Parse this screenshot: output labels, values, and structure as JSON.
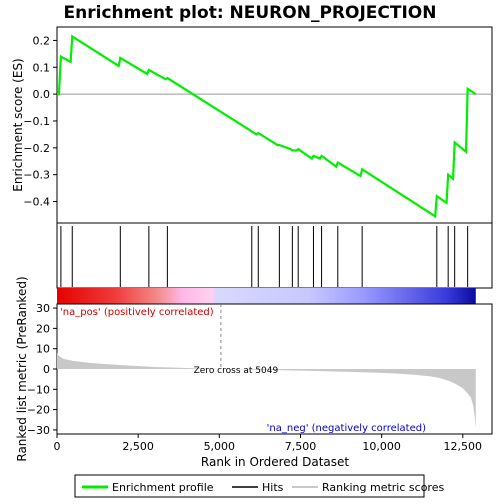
{
  "title": "Enrichment plot: NEURON_PROJECTION",
  "colors": {
    "profile": "#00ee00",
    "hits": "#000000",
    "metric_fill": "#c8c8c8",
    "zero_line": "#999999",
    "pos_label": "#cc0000",
    "neg_label": "#0000cc",
    "frame": "#000000"
  },
  "chart_data": [
    {
      "type": "line",
      "panel": "enrichment-profile",
      "ylabel": "Enrichment score (ES)",
      "xlim": [
        0,
        13400
      ],
      "ylim": [
        -0.48,
        0.25
      ],
      "yticks": [
        0.2,
        0.1,
        0.0,
        -0.1,
        -0.2,
        -0.3,
        -0.4
      ],
      "ytick_labels": [
        "0.2",
        "0.1",
        "0.0",
        "−0.1",
        "−0.2",
        "−0.3",
        "−0.4"
      ],
      "series": [
        {
          "name": "Enrichment profile",
          "x": [
            0,
            60,
            120,
            420,
            470,
            1900,
            1950,
            2780,
            2830,
            3350,
            3400,
            5950,
            6000,
            6150,
            6200,
            6800,
            6850,
            7200,
            7250,
            7380,
            7430,
            7850,
            7900,
            8100,
            8150,
            8600,
            8650,
            9350,
            9400,
            11650,
            11700,
            12000,
            12050,
            12200,
            12250,
            12600,
            12650,
            12900
          ],
          "y": [
            0.0,
            0.0,
            0.14,
            0.12,
            0.215,
            0.105,
            0.135,
            0.075,
            0.09,
            0.055,
            0.06,
            -0.135,
            -0.14,
            -0.15,
            -0.145,
            -0.19,
            -0.19,
            -0.205,
            -0.21,
            -0.21,
            -0.205,
            -0.24,
            -0.23,
            -0.24,
            -0.23,
            -0.27,
            -0.255,
            -0.305,
            -0.28,
            -0.455,
            -0.38,
            -0.405,
            -0.3,
            -0.315,
            -0.18,
            -0.215,
            0.02,
            0.0
          ]
        }
      ]
    },
    {
      "type": "scatter",
      "panel": "hits",
      "name": "Hits",
      "x": [
        120,
        470,
        1950,
        2830,
        3400,
        6000,
        6200,
        6850,
        7250,
        7430,
        7900,
        8150,
        8650,
        9400,
        11700,
        12050,
        12250,
        12650
      ]
    },
    {
      "type": "area",
      "panel": "ranked-metric",
      "xlabel": "Rank in Ordered Dataset",
      "ylabel": "Ranked list metric (PreRanked)",
      "xlim": [
        0,
        13400
      ],
      "ylim": [
        -32,
        32
      ],
      "xticks": [
        0,
        2500,
        5000,
        7500,
        10000,
        12500
      ],
      "xtick_labels": [
        "0",
        "2,500",
        "5,000",
        "7,500",
        "10,000",
        "12,500"
      ],
      "yticks": [
        30,
        20,
        10,
        0,
        -10,
        -20,
        -30
      ],
      "ytick_labels": [
        "30",
        "20",
        "10",
        "0",
        "−10",
        "−20",
        "−30"
      ],
      "series": [
        {
          "name": "Ranking metric scores",
          "x": [
            0,
            50,
            200,
            500,
            1000,
            1500,
            2000,
            2500,
            3000,
            4000,
            5049,
            6000,
            7000,
            8000,
            9000,
            10000,
            10500,
            11000,
            11500,
            11800,
            12100,
            12300,
            12500,
            12650,
            12750,
            12820,
            12870,
            12900
          ],
          "y": [
            8,
            6.5,
            5,
            4,
            3,
            2.4,
            1.9,
            1.4,
            1.0,
            0.5,
            0,
            -0.3,
            -0.6,
            -1.0,
            -1.4,
            -1.9,
            -2.3,
            -2.8,
            -3.6,
            -4.5,
            -6,
            -7.5,
            -9.5,
            -12,
            -14,
            -18,
            -24,
            -29
          ]
        }
      ],
      "annotations": {
        "zero_cross": "Zero cross at 5049",
        "zero_cross_x": 5049,
        "pos_label": "'na_pos' (positively correlated)",
        "neg_label": "'na_neg' (negatively correlated)"
      }
    }
  ],
  "legend": {
    "placement": "bottom",
    "items": [
      {
        "label": "Enrichment profile",
        "color": "#00ee00"
      },
      {
        "label": "Hits",
        "color": "#000000"
      },
      {
        "label": "Ranking metric scores",
        "color": "#c8c8c8"
      }
    ]
  }
}
